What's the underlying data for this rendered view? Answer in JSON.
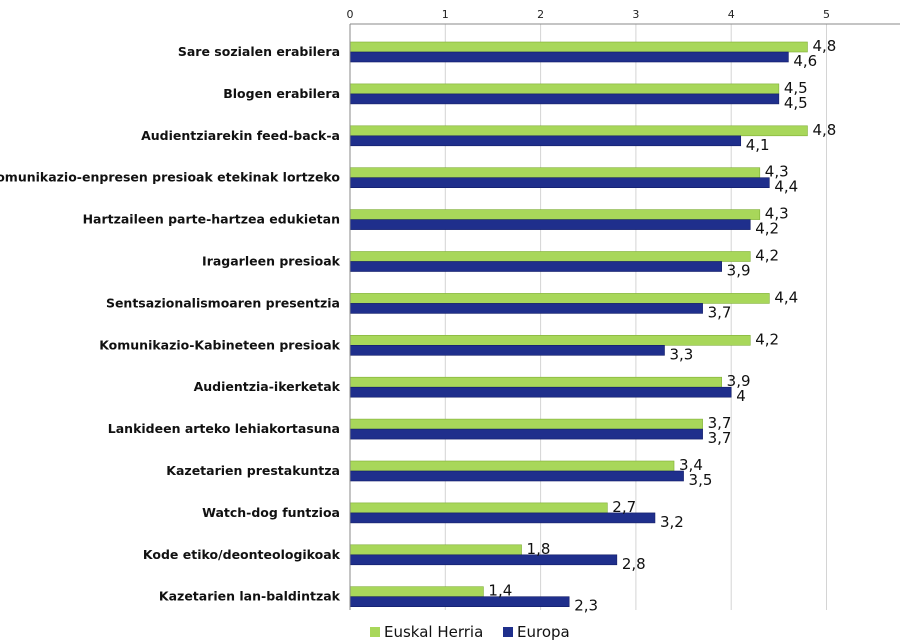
{
  "chart_data": {
    "type": "bar",
    "orientation": "horizontal",
    "categories": [
      "Sare sozialen erabilera",
      "Blogen erabilera",
      "Audientziarekin feed-back-a",
      "Komunikazio-enpresen presioak etekinak lortzeko",
      "Hartzaileen parte-hartzea edukietan",
      "Iragarleen presioak",
      "Sentsazionalismoaren presentzia",
      "Komunikazio-Kabineteen presioak",
      "Audientzia-ikerketak",
      "Lankideen arteko lehiakortasuna",
      "Kazetarien prestakuntza",
      "Watch-dog funtzioa",
      "Kode etiko/deonteologikoak",
      "Kazetarien lan-baldintzak"
    ],
    "series": [
      {
        "name": "Euskal Herria",
        "color": "#a8d75a",
        "values": [
          4.8,
          4.5,
          4.8,
          4.3,
          4.3,
          4.2,
          4.4,
          4.2,
          3.9,
          3.7,
          3.4,
          2.7,
          1.8,
          1.4
        ],
        "labels": [
          "4,8",
          "4,5",
          "4,8",
          "4,3",
          "4,3",
          "4,2",
          "4,4",
          "4,2",
          "3,9",
          "3,7",
          "3,4",
          "2,7",
          "1,8",
          "1,4"
        ]
      },
      {
        "name": "Europa",
        "color": "#1f2f8c",
        "values": [
          4.6,
          4.5,
          4.1,
          4.4,
          4.2,
          3.9,
          3.7,
          3.3,
          4.0,
          3.7,
          3.5,
          3.2,
          2.8,
          2.3
        ],
        "labels": [
          "4,6",
          "4,5",
          "4,1",
          "4,4",
          "4,2",
          "3,9",
          "3,7",
          "3,3",
          "4",
          "3,7",
          "3,5",
          "3,2",
          "2,8",
          "2,3"
        ]
      }
    ],
    "xticks": [
      "0",
      "1",
      "2",
      "3",
      "4",
      "5"
    ],
    "xlim": [
      0,
      5
    ],
    "xaxis_position": "top",
    "legend_position": "bottom",
    "title": "",
    "xlabel": "",
    "ylabel": ""
  }
}
